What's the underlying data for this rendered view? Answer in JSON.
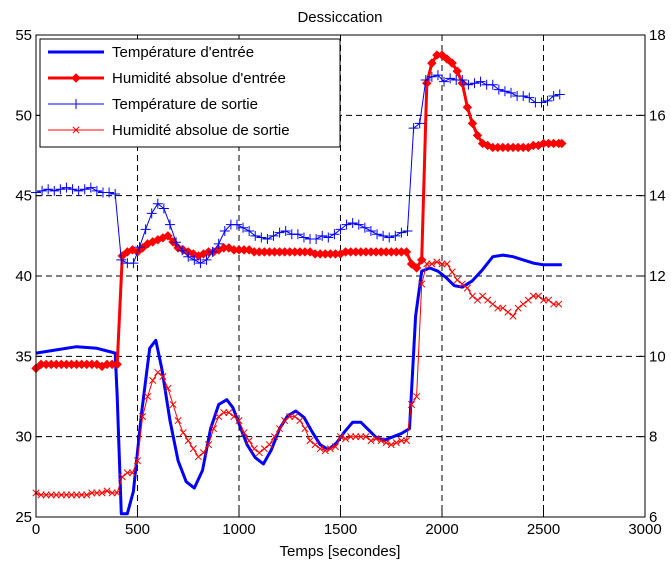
{
  "chart_data": {
    "type": "line",
    "title": "Dessiccation",
    "xlabel": "Temps [secondes]",
    "xlim": [
      0,
      3000
    ],
    "xticks": [
      0,
      500,
      1000,
      1500,
      2000,
      2500,
      3000
    ],
    "ylim_left": [
      25,
      55
    ],
    "yticks_left": [
      25,
      30,
      35,
      40,
      45,
      50,
      55
    ],
    "ylim_right": [
      6,
      18
    ],
    "yticks_right": [
      6,
      8,
      10,
      12,
      14,
      16,
      18
    ],
    "grid": true,
    "legend": "top-left",
    "series": [
      {
        "name": "Température d'entrée",
        "axis": "left",
        "color": "#0000ff",
        "width": 3,
        "marker": "none",
        "x": [
          0,
          100,
          200,
          300,
          360,
          390,
          400,
          420,
          450,
          480,
          520,
          560,
          590,
          620,
          660,
          700,
          740,
          780,
          820,
          860,
          900,
          940,
          970,
          1000,
          1040,
          1080,
          1120,
          1160,
          1200,
          1240,
          1280,
          1320,
          1360,
          1400,
          1440,
          1480,
          1520,
          1560,
          1600,
          1640,
          1680,
          1720,
          1760,
          1800,
          1840,
          1870,
          1900,
          1940,
          1980,
          2020,
          2060,
          2100,
          2150,
          2200,
          2250,
          2300,
          2350,
          2400,
          2450,
          2500,
          2550,
          2590
        ],
        "values": [
          35.2,
          35.4,
          35.6,
          35.5,
          35.3,
          35.2,
          32.5,
          25.2,
          25.2,
          26.6,
          31.5,
          35.5,
          36.0,
          34.2,
          31.0,
          28.5,
          27.2,
          26.8,
          27.9,
          30.5,
          32.0,
          32.3,
          31.8,
          30.8,
          29.5,
          28.7,
          28.3,
          29.2,
          30.5,
          31.3,
          31.6,
          31.2,
          30.3,
          29.5,
          29.2,
          29.6,
          30.3,
          30.9,
          30.9,
          30.4,
          29.9,
          29.8,
          30.0,
          30.2,
          30.5,
          37.5,
          40.3,
          40.5,
          40.3,
          39.9,
          39.4,
          39.3,
          39.7,
          40.4,
          41.2,
          41.3,
          41.2,
          41.0,
          40.8,
          40.7,
          40.7,
          40.7
        ]
      },
      {
        "name": "Humidité absolue d'entrée",
        "axis": "right",
        "color": "#ff0000",
        "width": 3,
        "marker": "diamond",
        "x": [
          0,
          25,
          50,
          75,
          100,
          125,
          150,
          175,
          200,
          225,
          250,
          275,
          300,
          325,
          350,
          375,
          400,
          425,
          450,
          475,
          500,
          525,
          550,
          575,
          600,
          625,
          650,
          675,
          700,
          725,
          750,
          775,
          800,
          825,
          850,
          875,
          900,
          925,
          950,
          975,
          1000,
          1025,
          1050,
          1075,
          1100,
          1125,
          1150,
          1175,
          1200,
          1225,
          1250,
          1275,
          1300,
          1325,
          1350,
          1375,
          1400,
          1425,
          1450,
          1475,
          1500,
          1525,
          1550,
          1575,
          1600,
          1625,
          1650,
          1675,
          1700,
          1725,
          1750,
          1775,
          1800,
          1825,
          1850,
          1875,
          1900,
          1925,
          1950,
          1975,
          2000,
          2025,
          2050,
          2075,
          2100,
          2125,
          2150,
          2175,
          2200,
          2225,
          2250,
          2275,
          2300,
          2325,
          2350,
          2375,
          2400,
          2425,
          2450,
          2475,
          2500,
          2525,
          2550,
          2575,
          2590
        ],
        "values": [
          9.7,
          9.8,
          9.8,
          9.8,
          9.8,
          9.8,
          9.8,
          9.8,
          9.8,
          9.8,
          9.8,
          9.8,
          9.8,
          9.75,
          9.8,
          9.8,
          9.8,
          12.5,
          12.6,
          12.65,
          12.6,
          12.7,
          12.8,
          12.85,
          12.9,
          12.95,
          13.0,
          12.85,
          12.7,
          12.65,
          12.6,
          12.55,
          12.5,
          12.55,
          12.6,
          12.6,
          12.65,
          12.7,
          12.7,
          12.65,
          12.65,
          12.65,
          12.65,
          12.6,
          12.6,
          12.6,
          12.6,
          12.6,
          12.6,
          12.6,
          12.6,
          12.6,
          12.6,
          12.6,
          12.6,
          12.55,
          12.55,
          12.55,
          12.55,
          12.55,
          12.55,
          12.6,
          12.6,
          12.6,
          12.6,
          12.6,
          12.6,
          12.6,
          12.6,
          12.6,
          12.6,
          12.6,
          12.6,
          12.6,
          12.3,
          12.2,
          12.4,
          16.8,
          17.3,
          17.5,
          17.5,
          17.4,
          17.3,
          17.1,
          16.8,
          16.2,
          15.8,
          15.5,
          15.3,
          15.25,
          15.2,
          15.2,
          15.2,
          15.2,
          15.2,
          15.2,
          15.2,
          15.2,
          15.25,
          15.25,
          15.3,
          15.3,
          15.3,
          15.3,
          15.3
        ]
      },
      {
        "name": "Température de sortie",
        "axis": "left",
        "color": "#0000ff",
        "width": 1,
        "marker": "plus",
        "x": [
          0,
          30,
          60,
          90,
          120,
          150,
          180,
          210,
          240,
          270,
          300,
          330,
          360,
          390,
          420,
          450,
          480,
          510,
          540,
          570,
          600,
          630,
          660,
          690,
          720,
          750,
          780,
          810,
          840,
          870,
          900,
          930,
          960,
          990,
          1020,
          1050,
          1080,
          1110,
          1140,
          1170,
          1200,
          1230,
          1260,
          1290,
          1320,
          1350,
          1380,
          1410,
          1440,
          1470,
          1500,
          1530,
          1560,
          1590,
          1620,
          1650,
          1680,
          1710,
          1740,
          1770,
          1800,
          1830,
          1860,
          1890,
          1920,
          1950,
          1980,
          2010,
          2040,
          2070,
          2100,
          2130,
          2160,
          2190,
          2220,
          2250,
          2280,
          2310,
          2340,
          2370,
          2400,
          2430,
          2460,
          2490,
          2520,
          2550,
          2580
        ],
        "values": [
          45.2,
          45.3,
          45.4,
          45.3,
          45.4,
          45.5,
          45.4,
          45.3,
          45.4,
          45.5,
          45.3,
          45.2,
          45.2,
          45.1,
          41.0,
          40.8,
          40.8,
          41.8,
          42.9,
          43.9,
          44.5,
          44.2,
          43.2,
          42.1,
          41.6,
          41.2,
          41.0,
          40.8,
          41.0,
          41.5,
          42.0,
          42.8,
          43.2,
          43.2,
          43.0,
          42.8,
          42.5,
          42.4,
          42.3,
          42.5,
          42.7,
          42.8,
          42.6,
          42.6,
          42.4,
          42.3,
          42.3,
          42.5,
          42.4,
          42.6,
          42.9,
          43.2,
          43.3,
          43.2,
          43.0,
          42.8,
          42.6,
          42.5,
          42.4,
          42.5,
          42.7,
          42.8,
          49.2,
          49.5,
          52.2,
          52.4,
          52.5,
          52.1,
          52.3,
          52.2,
          52.2,
          51.9,
          52.0,
          52.1,
          51.9,
          51.9,
          51.6,
          51.5,
          51.4,
          51.2,
          51.2,
          51.1,
          50.8,
          50.8,
          50.9,
          51.2,
          51.3
        ]
      },
      {
        "name": "Humidité absolue de sortie",
        "axis": "right",
        "color": "#ff0000",
        "width": 1,
        "marker": "cross",
        "x": [
          0,
          25,
          50,
          75,
          100,
          125,
          150,
          175,
          200,
          225,
          250,
          275,
          300,
          325,
          350,
          375,
          400,
          425,
          450,
          475,
          500,
          525,
          550,
          575,
          600,
          625,
          650,
          675,
          700,
          725,
          750,
          775,
          800,
          825,
          850,
          875,
          900,
          925,
          950,
          975,
          1000,
          1025,
          1050,
          1075,
          1100,
          1125,
          1150,
          1175,
          1200,
          1225,
          1250,
          1275,
          1300,
          1325,
          1350,
          1375,
          1400,
          1425,
          1450,
          1475,
          1500,
          1525,
          1550,
          1575,
          1600,
          1625,
          1650,
          1675,
          1700,
          1725,
          1750,
          1775,
          1800,
          1825,
          1850,
          1875,
          1900,
          1925,
          1950,
          1975,
          2000,
          2025,
          2050,
          2075,
          2100,
          2125,
          2150,
          2175,
          2200,
          2225,
          2250,
          2275,
          2300,
          2325,
          2350,
          2375,
          2400,
          2425,
          2450,
          2475,
          2500,
          2525,
          2550,
          2575
        ],
        "values": [
          6.6,
          6.55,
          6.55,
          6.55,
          6.55,
          6.55,
          6.55,
          6.55,
          6.55,
          6.55,
          6.55,
          6.6,
          6.6,
          6.6,
          6.65,
          6.6,
          6.6,
          7.0,
          7.1,
          7.1,
          7.4,
          8.5,
          9.0,
          9.4,
          9.6,
          9.5,
          9.2,
          8.8,
          8.4,
          8.1,
          7.9,
          7.7,
          7.5,
          7.6,
          7.8,
          8.2,
          8.5,
          8.6,
          8.6,
          8.5,
          8.4,
          8.1,
          7.9,
          7.7,
          7.6,
          7.7,
          7.8,
          8.0,
          8.2,
          8.4,
          8.5,
          8.5,
          8.4,
          8.2,
          7.9,
          7.8,
          7.7,
          7.65,
          7.7,
          7.75,
          8.0,
          7.95,
          8.0,
          8.0,
          8.0,
          8.0,
          7.9,
          7.95,
          7.9,
          7.85,
          7.8,
          7.85,
          7.9,
          7.9,
          8.8,
          9.0,
          11.8,
          12.3,
          12.3,
          12.35,
          12.3,
          12.3,
          12.1,
          11.9,
          11.8,
          11.7,
          11.5,
          11.4,
          11.5,
          11.4,
          11.3,
          11.2,
          11.2,
          11.1,
          11.0,
          11.2,
          11.3,
          11.4,
          11.5,
          11.5,
          11.4,
          11.4,
          11.3,
          11.3
        ]
      }
    ]
  }
}
